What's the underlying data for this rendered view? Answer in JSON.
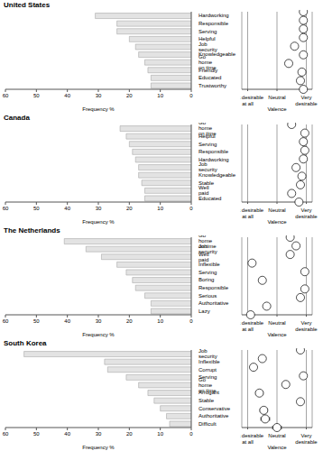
{
  "chart_data": [
    {
      "type": "bar",
      "title": "United States",
      "orientation": "horizontal",
      "color": "#e3e3e3",
      "xlabel": "Frequency %",
      "xlim": [
        0,
        60
      ],
      "xticks": [
        0,
        10,
        20,
        30,
        40,
        50,
        60
      ],
      "categories": [
        "Hardworking",
        "Responsible",
        "Serving",
        "Helpful",
        "Job security",
        "Knowledgeable",
        "Go home on time",
        "Friendly",
        "Educated",
        "Trustworthy"
      ],
      "values": [
        31,
        24,
        24,
        20,
        18,
        17,
        15,
        14,
        13,
        13
      ],
      "valence": {
        "type": "scatter",
        "marker": "circle",
        "color": "#ffffff",
        "xlabel": "Valence",
        "grid": true,
        "xlim": [
          0.6,
          5.4
        ],
        "xticks": [
          {
            "value": 1,
            "label": "Not desirable at all"
          },
          {
            "value": 3,
            "label": "Neutral"
          },
          {
            "value": 5,
            "label": "Very desirable"
          }
        ],
        "values": [
          4.8,
          4.8,
          4.8,
          4.8,
          4.2,
          4.8,
          3.8,
          4.7,
          4.6,
          4.8
        ],
        "error": [
          0.1,
          0.1,
          0.1,
          0.1,
          0.15,
          0.1,
          0.2,
          0.12,
          0.12,
          0.1
        ]
      }
    },
    {
      "type": "bar",
      "title": "Canada",
      "orientation": "horizontal",
      "color": "#e3e3e3",
      "xlabel": "Frequency %",
      "xlim": [
        0,
        60
      ],
      "xticks": [
        0,
        10,
        20,
        30,
        40,
        50,
        60
      ],
      "categories": [
        "Go home on time",
        "Helpful",
        "Serving",
        "Responsible",
        "Hardworking",
        "Job security",
        "Knowledgeable",
        "Stable",
        "Well paid",
        "Educated"
      ],
      "values": [
        23,
        21,
        20,
        19,
        18,
        17,
        17,
        16,
        15,
        15
      ],
      "valence": {
        "type": "scatter",
        "marker": "circle",
        "color": "#ffffff",
        "xlabel": "Valence",
        "grid": true,
        "xlim": [
          0.6,
          5.4
        ],
        "xticks": [
          {
            "value": 1,
            "label": "Not desirable at all"
          },
          {
            "value": 3,
            "label": "Neutral"
          },
          {
            "value": 5,
            "label": "Very desirable"
          }
        ],
        "values": [
          4.0,
          4.9,
          4.8,
          4.9,
          4.8,
          4.3,
          4.7,
          4.6,
          4.0,
          4.5
        ],
        "error": [
          0.2,
          0.1,
          0.1,
          0.1,
          0.1,
          0.15,
          0.12,
          0.12,
          0.2,
          0.15
        ]
      }
    },
    {
      "type": "bar",
      "title": "The Netherlands",
      "orientation": "horizontal",
      "color": "#e3e3e3",
      "xlabel": "Frequency %",
      "xlim": [
        0,
        60
      ],
      "xticks": [
        0,
        10,
        20,
        30,
        40,
        50,
        60
      ],
      "categories": [
        "Go home on time",
        "Job security",
        "Well paid",
        "Inflexible",
        "Serving",
        "Boring",
        "Responsible",
        "Serious",
        "Authoritative",
        "Lazy"
      ],
      "values": [
        41,
        34,
        29,
        24,
        21,
        19,
        18,
        15,
        13,
        13
      ],
      "valence": {
        "type": "scatter",
        "marker": "circle",
        "color": "#ffffff",
        "xlabel": "Valence",
        "grid": true,
        "xlim": [
          0.6,
          5.4
        ],
        "xticks": [
          {
            "value": 1,
            "label": "Not desirable at all"
          },
          {
            "value": 3,
            "label": "Neutral"
          },
          {
            "value": 5,
            "label": "Very desirable"
          }
        ],
        "values": [
          3.9,
          4.3,
          3.9,
          1.3,
          4.9,
          2.0,
          4.9,
          4.6,
          2.3,
          1.2
        ],
        "error": [
          0.15,
          0.15,
          0.15,
          0.15,
          0.1,
          0.15,
          0.1,
          0.15,
          0.2,
          0.15
        ]
      }
    },
    {
      "type": "bar",
      "title": "South Korea",
      "orientation": "horizontal",
      "color": "#e3e3e3",
      "xlabel": "Frequency %",
      "xlim": [
        0,
        60
      ],
      "xticks": [
        0,
        10,
        20,
        30,
        40,
        50,
        60
      ],
      "categories": [
        "Job security",
        "Inflexible",
        "Corrupt",
        "Serving",
        "Go home on time",
        "Arrogant",
        "Stable",
        "Conservative",
        "Authoritative",
        "Difficult"
      ],
      "values": [
        54,
        28,
        27,
        21,
        17,
        14,
        12,
        10,
        8,
        7
      ],
      "valence": {
        "type": "scatter",
        "marker": "circle",
        "color": "#ffffff",
        "xlabel": "Valence",
        "grid": true,
        "xlim": [
          0.6,
          5.4
        ],
        "xticks": [
          {
            "value": 1,
            "label": "Not desirable at all"
          },
          {
            "value": 3,
            "label": "Neutral"
          },
          {
            "value": 5,
            "label": "Very desirable"
          }
        ],
        "values": [
          4.6,
          2.0,
          1.4,
          4.8,
          3.6,
          1.8,
          4.6,
          2.1,
          2.2,
          3.0
        ],
        "error": [
          0.1,
          0.2,
          0.15,
          0.12,
          0.2,
          0.25,
          0.15,
          0.25,
          0.3,
          0.3
        ]
      }
    }
  ]
}
